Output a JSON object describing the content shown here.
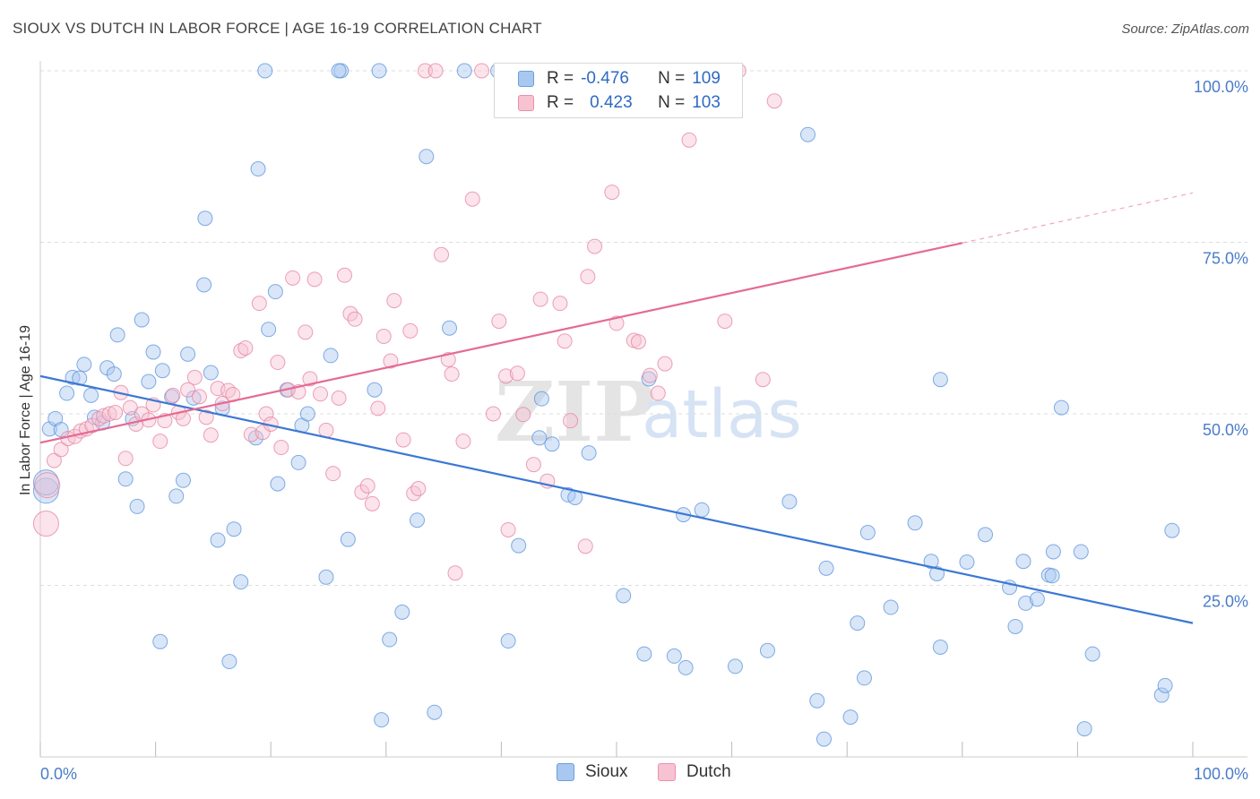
{
  "header": {
    "title": "SIOUX VS DUTCH IN LABOR FORCE | AGE 16-19 CORRELATION CHART",
    "source": "Source: ZipAtlas.com"
  },
  "legend": {
    "r_label": "R =",
    "n_label": "N =",
    "rows": [
      {
        "series": "Sioux",
        "r": "-0.476",
        "n": "109",
        "color": "#a9c8f0",
        "border": "#6a9fe0"
      },
      {
        "series": "Dutch",
        "r": "0.423",
        "n": "103",
        "color": "#f7c3d2",
        "border": "#ec8fab"
      }
    ]
  },
  "bottom_legend": [
    {
      "label": "Sioux",
      "color": "#a9c8f0",
      "border": "#6a9fe0"
    },
    {
      "label": "Dutch",
      "color": "#f7c3d2",
      "border": "#ec8fab"
    }
  ],
  "watermark": {
    "zip": "ZIP",
    "atlas": "atlas"
  },
  "chart_data": {
    "type": "scatter",
    "title": "SIOUX VS DUTCH IN LABOR FORCE | AGE 16-19 CORRELATION CHART",
    "xlabel": "",
    "ylabel": "In Labor Force | Age 16-19",
    "xlim": [
      0,
      100
    ],
    "ylim": [
      0,
      100
    ],
    "x_tick_labels": [
      "0.0%",
      "100.0%"
    ],
    "y_ticks": [
      25,
      50,
      75,
      100
    ],
    "y_tick_labels": [
      "25.0%",
      "50.0%",
      "75.0%",
      "100.0%"
    ],
    "grid": true,
    "colors": {
      "Sioux": "#3b78d4",
      "Dutch": "#e46b93"
    },
    "series": [
      {
        "name": "Sioux",
        "r": -0.476,
        "n": 109,
        "trend": {
          "x": [
            0,
            100
          ],
          "y": [
            55.5,
            19.5
          ]
        },
        "points": [
          [
            0.5,
            38.8
          ],
          [
            0.5,
            40.0
          ],
          [
            0.8,
            47.8
          ],
          [
            1.3,
            49.3
          ],
          [
            1.8,
            47.7
          ],
          [
            2.3,
            53.0
          ],
          [
            2.8,
            55.3
          ],
          [
            3.4,
            55.2
          ],
          [
            3.8,
            57.2
          ],
          [
            4.4,
            52.7
          ],
          [
            4.7,
            49.5
          ],
          [
            5.4,
            48.7
          ],
          [
            5.8,
            56.7
          ],
          [
            6.4,
            55.8
          ],
          [
            6.7,
            61.5
          ],
          [
            7.4,
            40.5
          ],
          [
            8.0,
            49.3
          ],
          [
            8.4,
            36.5
          ],
          [
            8.8,
            63.7
          ],
          [
            9.4,
            54.7
          ],
          [
            9.8,
            59.0
          ],
          [
            10.4,
            16.8
          ],
          [
            10.6,
            56.3
          ],
          [
            11.4,
            52.5
          ],
          [
            11.8,
            38.0
          ],
          [
            12.4,
            40.3
          ],
          [
            12.8,
            58.7
          ],
          [
            13.3,
            52.3
          ],
          [
            14.3,
            78.5
          ],
          [
            14.2,
            68.8
          ],
          [
            14.8,
            56.0
          ],
          [
            15.4,
            31.6
          ],
          [
            15.8,
            50.8
          ],
          [
            16.4,
            13.9
          ],
          [
            16.8,
            33.2
          ],
          [
            17.4,
            25.5
          ],
          [
            18.7,
            46.5
          ],
          [
            18.9,
            85.7
          ],
          [
            19.5,
            100.0
          ],
          [
            19.8,
            62.3
          ],
          [
            20.4,
            67.8
          ],
          [
            20.6,
            39.8
          ],
          [
            21.4,
            53.5
          ],
          [
            22.4,
            42.9
          ],
          [
            22.7,
            48.3
          ],
          [
            23.2,
            50.0
          ],
          [
            24.8,
            26.2
          ],
          [
            25.2,
            58.5
          ],
          [
            26.1,
            100.0
          ],
          [
            25.9,
            100.0
          ],
          [
            26.7,
            31.7
          ],
          [
            29.4,
            100.0
          ],
          [
            29.0,
            53.5
          ],
          [
            29.6,
            5.4
          ],
          [
            30.3,
            17.1
          ],
          [
            31.4,
            21.1
          ],
          [
            32.7,
            34.5
          ],
          [
            33.5,
            87.5
          ],
          [
            34.2,
            6.5
          ],
          [
            35.5,
            62.5
          ],
          [
            36.8,
            100.0
          ],
          [
            39.7,
            100.0
          ],
          [
            40.6,
            16.9
          ],
          [
            41.5,
            30.8
          ],
          [
            43.3,
            46.5
          ],
          [
            43.5,
            52.2
          ],
          [
            44.4,
            45.6
          ],
          [
            45.8,
            38.2
          ],
          [
            46.4,
            37.8
          ],
          [
            47.6,
            44.3
          ],
          [
            50.6,
            23.5
          ],
          [
            52.8,
            55.1
          ],
          [
            52.4,
            15.0
          ],
          [
            55.0,
            14.7
          ],
          [
            56.0,
            13.0
          ],
          [
            55.8,
            35.3
          ],
          [
            57.4,
            36.0
          ],
          [
            60.3,
            13.2
          ],
          [
            63.1,
            15.5
          ],
          [
            65.0,
            37.2
          ],
          [
            66.6,
            90.7
          ],
          [
            67.4,
            8.2
          ],
          [
            68.2,
            27.5
          ],
          [
            68.0,
            2.6
          ],
          [
            70.3,
            5.8
          ],
          [
            70.9,
            19.5
          ],
          [
            71.5,
            11.5
          ],
          [
            71.8,
            32.7
          ],
          [
            73.8,
            21.8
          ],
          [
            75.9,
            34.1
          ],
          [
            77.3,
            28.5
          ],
          [
            77.8,
            26.7
          ],
          [
            78.1,
            55.0
          ],
          [
            78.1,
            16.0
          ],
          [
            80.4,
            28.4
          ],
          [
            82.0,
            32.4
          ],
          [
            84.1,
            24.7
          ],
          [
            84.6,
            19.0
          ],
          [
            85.3,
            28.5
          ],
          [
            85.5,
            22.4
          ],
          [
            86.5,
            23.0
          ],
          [
            87.5,
            26.5
          ],
          [
            87.8,
            26.4
          ],
          [
            87.9,
            29.9
          ],
          [
            88.6,
            50.9
          ],
          [
            90.3,
            29.9
          ],
          [
            90.6,
            4.1
          ],
          [
            91.3,
            15.0
          ],
          [
            97.3,
            9.0
          ],
          [
            97.6,
            10.4
          ],
          [
            98.2,
            33.0
          ]
        ]
      },
      {
        "name": "Dutch",
        "r": 0.423,
        "n": 103,
        "trend": {
          "x": [
            0,
            80
          ],
          "y": [
            45.8,
            74.9
          ]
        },
        "trend_dashed": {
          "x": [
            80,
            100
          ],
          "y": [
            74.9,
            82.2
          ]
        },
        "points": [
          [
            0.5,
            34.0
          ],
          [
            0.6,
            39.6
          ],
          [
            1.2,
            43.2
          ],
          [
            1.8,
            44.8
          ],
          [
            2.4,
            46.4
          ],
          [
            3.0,
            46.7
          ],
          [
            3.5,
            47.5
          ],
          [
            4.0,
            47.8
          ],
          [
            4.5,
            48.3
          ],
          [
            5.1,
            49.3
          ],
          [
            5.5,
            49.7
          ],
          [
            6.0,
            50.0
          ],
          [
            6.5,
            50.2
          ],
          [
            7.0,
            53.1
          ],
          [
            7.4,
            43.5
          ],
          [
            7.8,
            50.9
          ],
          [
            8.3,
            48.5
          ],
          [
            8.8,
            50.0
          ],
          [
            9.4,
            49.1
          ],
          [
            9.8,
            51.3
          ],
          [
            10.4,
            46.0
          ],
          [
            10.8,
            49.0
          ],
          [
            11.5,
            52.7
          ],
          [
            12.0,
            50.2
          ],
          [
            12.4,
            49.3
          ],
          [
            12.8,
            53.5
          ],
          [
            13.4,
            55.3
          ],
          [
            13.8,
            52.5
          ],
          [
            14.4,
            49.5
          ],
          [
            14.8,
            46.9
          ],
          [
            15.4,
            53.7
          ],
          [
            15.8,
            51.5
          ],
          [
            16.3,
            53.4
          ],
          [
            16.7,
            52.8
          ],
          [
            17.4,
            59.2
          ],
          [
            17.8,
            59.6
          ],
          [
            18.3,
            47.0
          ],
          [
            19.0,
            66.1
          ],
          [
            19.3,
            47.3
          ],
          [
            19.6,
            50.0
          ],
          [
            20.0,
            48.5
          ],
          [
            20.6,
            57.5
          ],
          [
            20.9,
            45.1
          ],
          [
            21.5,
            53.5
          ],
          [
            21.9,
            69.8
          ],
          [
            22.4,
            53.2
          ],
          [
            23.0,
            61.9
          ],
          [
            23.4,
            55.1
          ],
          [
            23.8,
            69.6
          ],
          [
            24.3,
            52.9
          ],
          [
            24.8,
            47.6
          ],
          [
            25.4,
            41.3
          ],
          [
            25.9,
            52.3
          ],
          [
            26.4,
            70.2
          ],
          [
            26.9,
            64.6
          ],
          [
            27.3,
            63.8
          ],
          [
            27.9,
            38.6
          ],
          [
            28.4,
            39.5
          ],
          [
            28.8,
            36.9
          ],
          [
            29.3,
            50.8
          ],
          [
            29.8,
            61.3
          ],
          [
            30.4,
            57.7
          ],
          [
            30.7,
            66.5
          ],
          [
            31.5,
            46.2
          ],
          [
            32.1,
            62.1
          ],
          [
            32.4,
            38.4
          ],
          [
            32.8,
            39.1
          ],
          [
            33.4,
            100.0
          ],
          [
            34.3,
            100.0
          ],
          [
            34.8,
            73.2
          ],
          [
            35.4,
            57.9
          ],
          [
            35.7,
            55.8
          ],
          [
            36.0,
            26.8
          ],
          [
            36.7,
            46.0
          ],
          [
            37.5,
            81.3
          ],
          [
            38.3,
            100.0
          ],
          [
            39.3,
            50.0
          ],
          [
            39.8,
            63.5
          ],
          [
            40.4,
            55.5
          ],
          [
            40.6,
            33.1
          ],
          [
            41.4,
            55.9
          ],
          [
            41.9,
            49.9
          ],
          [
            42.8,
            42.6
          ],
          [
            43.4,
            66.7
          ],
          [
            44.0,
            40.2
          ],
          [
            45.1,
            66.1
          ],
          [
            45.5,
            60.6
          ],
          [
            46.0,
            49.0
          ],
          [
            47.3,
            30.7
          ],
          [
            47.5,
            70.0
          ],
          [
            48.1,
            74.4
          ],
          [
            49.6,
            82.3
          ],
          [
            50.0,
            63.2
          ],
          [
            51.5,
            60.7
          ],
          [
            51.9,
            60.5
          ],
          [
            52.9,
            55.6
          ],
          [
            53.6,
            53.0
          ],
          [
            54.2,
            57.3
          ],
          [
            56.3,
            89.9
          ],
          [
            59.4,
            63.5
          ],
          [
            60.6,
            100.0
          ],
          [
            62.7,
            55.0
          ],
          [
            63.7,
            95.6
          ]
        ]
      }
    ]
  }
}
